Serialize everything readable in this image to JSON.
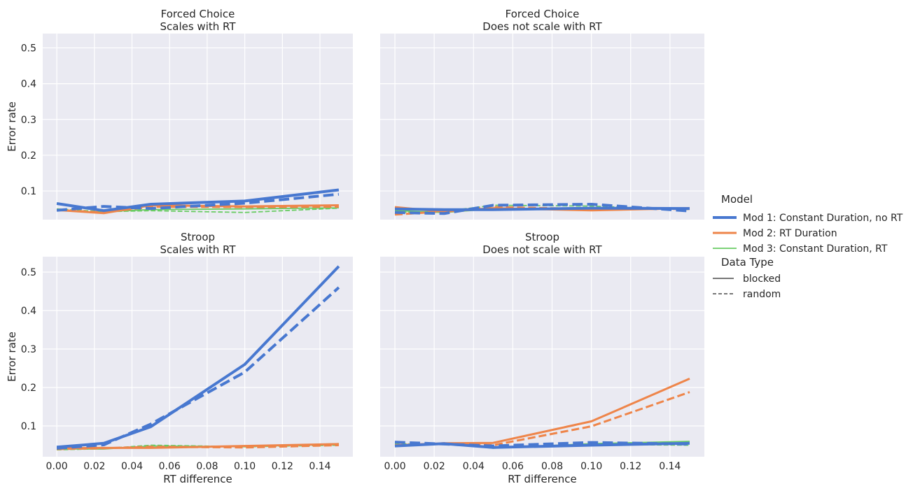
{
  "chart_data": [
    {
      "type": "line",
      "title_line1": "Forced Choice",
      "title_line2": "Scales with RT",
      "xlabel": "",
      "ylabel": "Error rate",
      "xlim": [
        -0.0075,
        0.1575
      ],
      "ylim": [
        0.02,
        0.54
      ],
      "series": [
        {
          "model": "Mod 1: Constant Duration, no RT",
          "data_type": "blocked",
          "x": [
            0,
            0.025,
            0.05,
            0.1,
            0.15
          ],
          "y": [
            0.065,
            0.045,
            0.063,
            0.072,
            0.103
          ]
        },
        {
          "model": "Mod 1: Constant Duration, no RT",
          "data_type": "random",
          "x": [
            0,
            0.025,
            0.05,
            0.1,
            0.15
          ],
          "y": [
            0.046,
            0.057,
            0.051,
            0.066,
            0.091
          ]
        },
        {
          "model": "Mod 2: RT Duration",
          "data_type": "blocked",
          "x": [
            0,
            0.025,
            0.05,
            0.1,
            0.15
          ],
          "y": [
            0.047,
            0.038,
            0.06,
            0.057,
            0.06
          ]
        },
        {
          "model": "Mod 2: RT Duration",
          "data_type": "random",
          "x": [
            0,
            0.025,
            0.05,
            0.1,
            0.15
          ],
          "y": [
            0.047,
            0.04,
            0.056,
            0.055,
            0.056
          ]
        },
        {
          "model": "Mod 3: Constant Duration, RT",
          "data_type": "blocked",
          "x": [
            0,
            0.025,
            0.05,
            0.1,
            0.15
          ],
          "y": [
            0.066,
            0.042,
            0.048,
            0.05,
            0.053
          ]
        },
        {
          "model": "Mod 3: Constant Duration, RT",
          "data_type": "random",
          "x": [
            0,
            0.025,
            0.05,
            0.1,
            0.15
          ],
          "y": [
            0.05,
            0.042,
            0.045,
            0.04,
            0.052
          ]
        }
      ]
    },
    {
      "type": "line",
      "title_line1": "Forced Choice",
      "title_line2": "Does not scale with RT",
      "xlabel": "",
      "ylabel": "",
      "xlim": [
        -0.0075,
        0.1575
      ],
      "ylim": [
        0.02,
        0.54
      ],
      "series": [
        {
          "model": "Mod 1: Constant Duration, no RT",
          "data_type": "blocked",
          "x": [
            0,
            0.025,
            0.05,
            0.1,
            0.15
          ],
          "y": [
            0.05,
            0.048,
            0.048,
            0.052,
            0.051
          ]
        },
        {
          "model": "Mod 1: Constant Duration, no RT",
          "data_type": "random",
          "x": [
            0,
            0.025,
            0.05,
            0.1,
            0.15
          ],
          "y": [
            0.04,
            0.037,
            0.06,
            0.063,
            0.044
          ]
        },
        {
          "model": "Mod 2: RT Duration",
          "data_type": "blocked",
          "x": [
            0,
            0.025,
            0.05,
            0.1,
            0.15
          ],
          "y": [
            0.055,
            0.042,
            0.052,
            0.046,
            0.052
          ]
        },
        {
          "model": "Mod 2: RT Duration",
          "data_type": "random",
          "x": [
            0,
            0.025,
            0.05,
            0.1,
            0.15
          ],
          "y": [
            0.034,
            0.043,
            0.055,
            0.05,
            0.05
          ]
        },
        {
          "model": "Mod 3: Constant Duration, RT",
          "data_type": "blocked",
          "x": [
            0,
            0.025,
            0.05,
            0.1,
            0.15
          ],
          "y": [
            0.045,
            0.04,
            0.05,
            0.052,
            0.05
          ]
        },
        {
          "model": "Mod 3: Constant Duration, RT",
          "data_type": "random",
          "x": [
            0,
            0.025,
            0.05,
            0.1,
            0.15
          ],
          "y": [
            0.04,
            0.043,
            0.06,
            0.058,
            0.048
          ]
        }
      ]
    },
    {
      "type": "line",
      "title_line1": "Stroop",
      "title_line2": "Scales with RT",
      "xlabel": "RT difference",
      "ylabel": "Error rate",
      "xlim": [
        -0.0075,
        0.1575
      ],
      "ylim": [
        0.02,
        0.54
      ],
      "series": [
        {
          "model": "Mod 1: Constant Duration, no RT",
          "data_type": "blocked",
          "x": [
            0,
            0.025,
            0.05,
            0.1,
            0.15
          ],
          "y": [
            0.045,
            0.055,
            0.098,
            0.26,
            0.515
          ]
        },
        {
          "model": "Mod 1: Constant Duration, no RT",
          "data_type": "random",
          "x": [
            0,
            0.025,
            0.05,
            0.1,
            0.15
          ],
          "y": [
            0.042,
            0.051,
            0.105,
            0.24,
            0.46
          ]
        },
        {
          "model": "Mod 2: RT Duration",
          "data_type": "blocked",
          "x": [
            0,
            0.025,
            0.05,
            0.1,
            0.15
          ],
          "y": [
            0.042,
            0.043,
            0.043,
            0.048,
            0.053
          ]
        },
        {
          "model": "Mod 2: RT Duration",
          "data_type": "random",
          "x": [
            0,
            0.025,
            0.05,
            0.1,
            0.15
          ],
          "y": [
            0.04,
            0.042,
            0.046,
            0.044,
            0.05
          ]
        },
        {
          "model": "Mod 3: Constant Duration, RT",
          "data_type": "blocked",
          "x": [
            0,
            0.025,
            0.05,
            0.1,
            0.15
          ],
          "y": [
            0.04,
            0.04,
            0.048,
            0.046,
            0.054
          ]
        },
        {
          "model": "Mod 3: Constant Duration, RT",
          "data_type": "random",
          "x": [
            0,
            0.025,
            0.05,
            0.1,
            0.15
          ],
          "y": [
            0.038,
            0.041,
            0.05,
            0.046,
            0.05
          ]
        }
      ]
    },
    {
      "type": "line",
      "title_line1": "Stroop",
      "title_line2": "Does not scale with RT",
      "xlabel": "RT difference",
      "ylabel": "",
      "xlim": [
        -0.0075,
        0.1575
      ],
      "ylim": [
        0.02,
        0.54
      ],
      "series": [
        {
          "model": "Mod 1: Constant Duration, no RT",
          "data_type": "blocked",
          "x": [
            0,
            0.025,
            0.05,
            0.1,
            0.15
          ],
          "y": [
            0.048,
            0.054,
            0.044,
            0.05,
            0.055
          ]
        },
        {
          "model": "Mod 1: Constant Duration, no RT",
          "data_type": "random",
          "x": [
            0,
            0.025,
            0.05,
            0.1,
            0.15
          ],
          "y": [
            0.058,
            0.053,
            0.048,
            0.057,
            0.053
          ]
        },
        {
          "model": "Mod 2: RT Duration",
          "data_type": "blocked",
          "x": [
            0,
            0.025,
            0.05,
            0.1,
            0.15
          ],
          "y": [
            0.048,
            0.055,
            0.056,
            0.112,
            0.223
          ]
        },
        {
          "model": "Mod 2: RT Duration",
          "data_type": "random",
          "x": [
            0,
            0.025,
            0.05,
            0.1,
            0.15
          ],
          "y": [
            0.05,
            0.055,
            0.05,
            0.099,
            0.188
          ]
        },
        {
          "model": "Mod 3: Constant Duration, RT",
          "data_type": "blocked",
          "x": [
            0,
            0.025,
            0.05,
            0.1,
            0.15
          ],
          "y": [
            0.049,
            0.054,
            0.042,
            0.054,
            0.06
          ]
        },
        {
          "model": "Mod 3: Constant Duration, RT",
          "data_type": "random",
          "x": [
            0,
            0.025,
            0.05,
            0.1,
            0.15
          ],
          "y": [
            0.054,
            0.052,
            0.045,
            0.052,
            0.05
          ]
        }
      ]
    }
  ],
  "x_ticks": [
    0.0,
    0.02,
    0.04,
    0.06,
    0.08,
    0.1,
    0.12,
    0.14
  ],
  "x_tick_labels": [
    "0.00",
    "0.02",
    "0.04",
    "0.06",
    "0.08",
    "0.10",
    "0.12",
    "0.14"
  ],
  "y_ticks": [
    0.1,
    0.2,
    0.3,
    0.4,
    0.5
  ],
  "y_tick_labels": [
    "0.1",
    "0.2",
    "0.3",
    "0.4",
    "0.5"
  ],
  "legend": {
    "placement": "right",
    "model_title": "Model",
    "models": [
      {
        "label": "Mod 1: Constant Duration, no RT",
        "color": "#4878d0"
      },
      {
        "label": "Mod 2: RT Duration",
        "color": "#ee854a"
      },
      {
        "label": "Mod 3: Constant Duration, RT",
        "color": "#6acc64"
      }
    ],
    "data_type_title": "Data Type",
    "data_types": [
      {
        "label": "blocked",
        "dash": "solid"
      },
      {
        "label": "random",
        "dash": "dashed"
      }
    ]
  },
  "style": {
    "panel_background": "#eaeaf2",
    "grid": true
  }
}
